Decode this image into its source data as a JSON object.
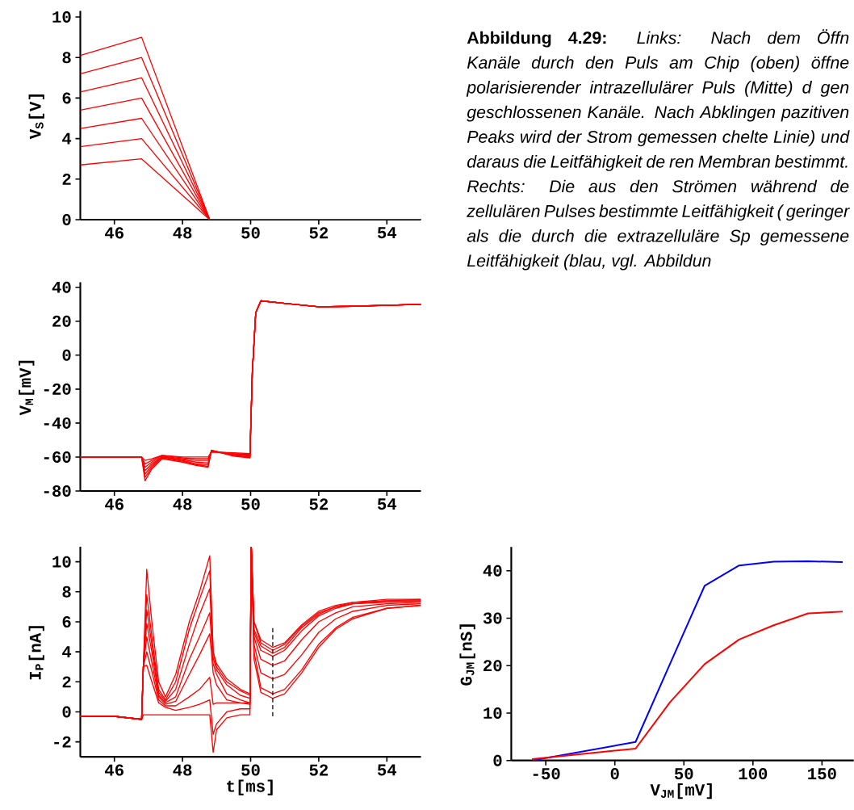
{
  "chart_data": [
    {
      "type": "line",
      "ylabel": "V$_{S}$[V]",
      "xlim": [
        45,
        55
      ],
      "ylim": [
        0,
        10.3
      ],
      "xticks": [
        46,
        48,
        50,
        52,
        54
      ],
      "yticks": [
        0,
        2,
        4,
        6,
        8,
        10
      ],
      "series": [
        {
          "color": "#ff0000",
          "x": [
            45,
            46.8,
            48.8,
            55
          ],
          "values": [
            8.1,
            9,
            0,
            0
          ]
        },
        {
          "color": "#ff0000",
          "x": [
            45,
            46.8,
            48.8,
            55
          ],
          "values": [
            7.2,
            8,
            0,
            0
          ]
        },
        {
          "color": "#ff0000",
          "x": [
            45,
            46.8,
            48.8,
            55
          ],
          "values": [
            6.3,
            7,
            0,
            0
          ]
        },
        {
          "color": "#ff0000",
          "x": [
            45,
            46.8,
            48.8,
            55
          ],
          "values": [
            5.4,
            6,
            0,
            0
          ]
        },
        {
          "color": "#ff0000",
          "x": [
            45,
            46.8,
            48.8,
            55
          ],
          "values": [
            4.5,
            5,
            0,
            0
          ]
        },
        {
          "color": "#ff0000",
          "x": [
            45,
            46.8,
            48.8,
            55
          ],
          "values": [
            3.6,
            4,
            0,
            0
          ]
        },
        {
          "color": "#ff0000",
          "x": [
            45,
            46.8,
            48.8,
            55
          ],
          "values": [
            2.7,
            3,
            0,
            0
          ]
        }
      ]
    },
    {
      "type": "other",
      "annotations": [
        "Abbildung 4.29:",
        "Links: Nach dem Öffn Kanäle durch den Puls am Chip (oben) öffne polarisierender intrazellulärer Puls (Mitte) d gen geschlossenen Kanäle. Nach Abklingen pazitiven Peaks wird der Strom gemessen chelte Linie) und daraus die Leitfähigkeit de ren Membran bestimmt.",
        "Rechts: Die aus den Strömen während de zellulären Pulses bestimmte Leitfähigkeit ( geringer als die durch die extrazelluläre Sp gemessene Leitfähigkeit (blau, vgl. Abbildun"
      ]
    },
    {
      "type": "line",
      "ylabel": "V$_{M}$[mV]",
      "xlim": [
        45,
        55
      ],
      "ylim": [
        -80,
        43
      ],
      "xticks": [
        46,
        48,
        50,
        52,
        54
      ],
      "yticks": [
        -80,
        -60,
        -40,
        -20,
        0,
        20,
        40
      ],
      "series": [
        {
          "color": "#ff0000",
          "x": [
            45,
            46.8,
            46.9,
            47.1,
            47.4,
            48.0,
            48.4,
            48.75,
            48.85,
            49.5,
            49.98,
            50.05,
            50.15,
            50.3,
            51.0,
            52.0,
            53.0,
            55.0
          ],
          "values": [
            -60,
            -60,
            -62,
            -61,
            -59,
            -60,
            -60,
            -60,
            -57,
            -57.5,
            -58,
            -10,
            25,
            32,
            30.5,
            28.5,
            28.8,
            30
          ]
        },
        {
          "color": "#ff0000",
          "x": [
            45,
            46.8,
            46.9,
            47.1,
            47.4,
            48.0,
            48.4,
            48.75,
            48.85,
            49.5,
            49.98,
            50.05,
            50.15,
            50.3,
            51.0,
            52.0,
            53.0,
            55.0
          ],
          "values": [
            -60,
            -60,
            -64,
            -62,
            -59,
            -60.5,
            -61,
            -61,
            -57,
            -58,
            -58.5,
            -10,
            25,
            32,
            30.5,
            28.5,
            28.8,
            30
          ]
        },
        {
          "color": "#ff0000",
          "x": [
            45,
            46.8,
            46.9,
            47.1,
            47.4,
            48.0,
            48.4,
            48.75,
            48.85,
            49.5,
            49.98,
            50.05,
            50.15,
            50.3,
            51.0,
            52.0,
            53.0,
            55.0
          ],
          "values": [
            -60,
            -60,
            -66,
            -63,
            -59.5,
            -61,
            -62,
            -62,
            -56.5,
            -58,
            -59,
            -10,
            25,
            32,
            30.5,
            28.5,
            28.8,
            30
          ]
        },
        {
          "color": "#ff0000",
          "x": [
            45,
            46.8,
            46.9,
            47.1,
            47.4,
            48.0,
            48.4,
            48.75,
            48.85,
            49.5,
            49.98,
            50.05,
            50.15,
            50.3,
            51.0,
            52.0,
            53.0,
            55.0
          ],
          "values": [
            -60,
            -60,
            -68,
            -64,
            -60,
            -61.5,
            -63,
            -63.5,
            -56.5,
            -58.5,
            -59.5,
            -10,
            25,
            32,
            30.5,
            28.5,
            28.8,
            30
          ]
        },
        {
          "color": "#ff0000",
          "x": [
            45,
            46.8,
            46.9,
            47.1,
            47.4,
            48.0,
            48.4,
            48.75,
            48.85,
            49.5,
            49.98,
            50.05,
            50.15,
            50.3,
            51.0,
            52.0,
            53.0,
            55.0
          ],
          "values": [
            -60,
            -60,
            -70,
            -65,
            -60,
            -62,
            -64,
            -64.5,
            -56,
            -59,
            -60,
            -10,
            25,
            32,
            30.5,
            28.5,
            28.8,
            30
          ]
        },
        {
          "color": "#ff0000",
          "x": [
            45,
            46.8,
            46.9,
            47.1,
            47.4,
            48.0,
            48.4,
            48.75,
            48.85,
            49.5,
            49.98,
            50.05,
            50.15,
            50.3,
            51.0,
            52.0,
            53.0,
            55.0
          ],
          "values": [
            -60,
            -60,
            -72,
            -66,
            -60.5,
            -62.5,
            -64.5,
            -65.5,
            -56,
            -59,
            -60,
            -10,
            25,
            32,
            30.5,
            28.5,
            28.8,
            30
          ]
        },
        {
          "color": "#ff0000",
          "x": [
            45,
            46.8,
            46.9,
            47.1,
            47.4,
            48.0,
            48.4,
            48.75,
            48.85,
            49.5,
            49.98,
            50.05,
            50.15,
            50.3,
            51.0,
            52.0,
            53.0,
            55.0
          ],
          "values": [
            -60,
            -60,
            -74,
            -67,
            -61,
            -63,
            -65,
            -66,
            -56,
            -59.5,
            -60.5,
            -10,
            25,
            32,
            30.5,
            28.5,
            28.8,
            30
          ]
        }
      ]
    },
    {
      "type": "line",
      "xlabel": "t[ms]",
      "ylabel": "I$_{P}$[nA]",
      "xlim": [
        45,
        55
      ],
      "ylim": [
        -3,
        11
      ],
      "xticks": [
        46,
        48,
        50,
        52,
        54
      ],
      "yticks": [
        -2,
        0,
        2,
        4,
        6,
        8,
        10
      ],
      "series": [
        {
          "color": "#ff0000",
          "x": [
            45,
            46.0,
            46.8,
            46.85,
            46.95,
            47.1,
            47.3,
            47.5,
            47.8,
            48.2,
            48.5,
            48.8,
            48.9,
            49.0,
            49.3,
            49.7,
            49.98,
            50.02,
            50.1,
            50.3,
            50.65,
            51.0,
            51.5,
            52.0,
            52.5,
            53.0,
            54.0,
            55.0
          ],
          "values": [
            -0.3,
            -0.3,
            -0.5,
            3,
            9.5,
            6,
            2,
            1,
            2.5,
            6,
            8,
            10.4,
            4,
            3.2,
            2.2,
            1.5,
            1.2,
            11,
            6,
            4.8,
            4.3,
            4.6,
            5.8,
            6.7,
            7.1,
            7.3,
            7.5,
            7.5
          ]
        },
        {
          "color": "#ff0000",
          "x": [
            45,
            46.0,
            46.8,
            46.85,
            46.95,
            47.1,
            47.3,
            47.5,
            47.8,
            48.2,
            48.5,
            48.8,
            48.9,
            49.0,
            49.3,
            49.7,
            49.98,
            50.02,
            50.1,
            50.3,
            50.65,
            51.0,
            51.5,
            52.0,
            52.5,
            53.0,
            54.0,
            55.0
          ],
          "values": [
            -0.3,
            -0.3,
            -0.5,
            3,
            7.8,
            5,
            1.5,
            0.8,
            2,
            5.5,
            7.5,
            9.4,
            4,
            3,
            2,
            1.4,
            1.1,
            11,
            6,
            4.6,
            4.1,
            4.5,
            5.7,
            6.6,
            7.0,
            7.3,
            7.4,
            7.5
          ]
        },
        {
          "color": "#ff0000",
          "x": [
            45,
            46.0,
            46.8,
            46.85,
            46.95,
            47.1,
            47.3,
            47.5,
            47.8,
            48.2,
            48.5,
            48.8,
            48.9,
            49.0,
            49.3,
            49.7,
            49.98,
            50.02,
            50.1,
            50.3,
            50.65,
            51.0,
            51.5,
            52.0,
            52.5,
            53.0,
            54.0,
            55.0
          ],
          "values": [
            -0.3,
            -0.3,
            -0.5,
            3,
            6.8,
            4.5,
            1.3,
            0.7,
            1.5,
            4.5,
            6.5,
            8.2,
            3.6,
            2.8,
            1.8,
            1.1,
            0.9,
            11,
            5.5,
            4.4,
            3.9,
            4.3,
            5.6,
            6.5,
            7.0,
            7.2,
            7.4,
            7.4
          ]
        },
        {
          "color": "#ff0000",
          "x": [
            45,
            46.0,
            46.8,
            46.85,
            46.95,
            47.1,
            47.3,
            47.5,
            47.8,
            48.2,
            48.5,
            48.8,
            48.9,
            49.0,
            49.3,
            49.7,
            49.98,
            50.02,
            50.1,
            50.3,
            50.65,
            51.0,
            51.5,
            52.0,
            52.5,
            53.0,
            54.0,
            55.0
          ],
          "values": [
            -0.3,
            -0.3,
            -0.5,
            3,
            5.9,
            4,
            1.1,
            0.6,
            1,
            3.5,
            5,
            6.6,
            3.2,
            2.5,
            1.2,
            0.8,
            0.6,
            11,
            5.3,
            4.1,
            3.7,
            4.1,
            5.4,
            6.4,
            6.9,
            7.2,
            7.3,
            7.4
          ]
        },
        {
          "color": "#ff0000",
          "x": [
            45,
            46.0,
            46.8,
            46.85,
            46.95,
            47.1,
            47.3,
            47.5,
            47.8,
            48.2,
            48.5,
            48.8,
            48.9,
            49.0,
            49.3,
            49.7,
            49.98,
            50.02,
            50.1,
            50.3,
            50.65,
            51.0,
            51.5,
            52.0,
            52.5,
            53.0,
            54.0,
            55.0
          ],
          "values": [
            -0.3,
            -0.3,
            -0.5,
            3,
            5.0,
            3.3,
            1.0,
            0.5,
            0.7,
            2.5,
            3.8,
            5.2,
            2.6,
            1.8,
            0.8,
            0.6,
            0.5,
            11,
            5,
            3.5,
            3.1,
            3.4,
            4.8,
            6.0,
            6.6,
            7.0,
            7.2,
            7.3
          ]
        },
        {
          "color": "#ff0000",
          "x": [
            45,
            46.0,
            46.8,
            46.85,
            46.95,
            47.1,
            47.3,
            47.5,
            47.8,
            48.2,
            48.5,
            48.8,
            48.9,
            49.0,
            49.3,
            49.7,
            49.98,
            50.02,
            50.1,
            50.3,
            50.65,
            51.0,
            51.5,
            52.0,
            52.5,
            53.0,
            54.0,
            55.0
          ],
          "values": [
            -0.3,
            -0.3,
            -0.5,
            3,
            4.0,
            2.7,
            0.8,
            0.4,
            0.4,
            1,
            1.5,
            2.3,
            0.5,
            0.6,
            0.6,
            0.6,
            0.6,
            11,
            4.5,
            2.6,
            2.2,
            2.5,
            3.8,
            5.3,
            6.2,
            6.7,
            7.1,
            7.2
          ]
        },
        {
          "color": "#ff0000",
          "x": [
            45,
            46.0,
            46.8,
            46.85,
            46.95,
            47.1,
            47.3,
            47.5,
            47.8,
            48.2,
            48.5,
            48.8,
            48.9,
            49.0,
            49.3,
            49.7,
            49.98,
            50.02,
            50.1,
            50.3,
            50.65,
            51.0,
            51.5,
            52.0,
            52.5,
            53.0,
            54.0,
            55.0
          ],
          "values": [
            -0.3,
            -0.3,
            -0.5,
            3,
            3.1,
            2,
            0.6,
            0.3,
            0.1,
            0.3,
            0.5,
            0.8,
            -1.5,
            -0.8,
            0,
            0.2,
            0.2,
            11,
            4,
            1.6,
            1.2,
            1.5,
            2.8,
            4.5,
            5.6,
            6.3,
            6.9,
            7.1
          ]
        },
        {
          "color": "#ff0000",
          "x": [
            45,
            46.0,
            46.8,
            46.85,
            46.95,
            47.1,
            47.3,
            47.5,
            47.8,
            48.2,
            48.5,
            48.8,
            48.9,
            49.0,
            49.3,
            49.7,
            49.98,
            50.02,
            50.1,
            50.3,
            50.65,
            51.0,
            51.5,
            52.0,
            52.5,
            53.0,
            54.0,
            55.0
          ],
          "values": [
            -0.3,
            -0.3,
            -0.5,
            -0.2,
            -0.2,
            -0.2,
            -0.2,
            -0.2,
            -0.2,
            -0.2,
            -0.2,
            -0.2,
            -2.7,
            -1.2,
            -0.4,
            -0.2,
            -0.2,
            11,
            3.5,
            1.3,
            0.9,
            1.2,
            2.6,
            4.3,
            5.5,
            6.2,
            6.9,
            7.1
          ]
        },
        {
          "color": "#000000",
          "line_style": "dashed",
          "x": [
            50.65,
            50.65
          ],
          "values": [
            -0.3,
            5.6
          ]
        }
      ]
    },
    {
      "type": "line",
      "xlabel": "V$_{JM}$[mV]",
      "ylabel": "G$_{JM}$[nS]",
      "xlim": [
        -75,
        173
      ],
      "ylim": [
        0,
        45
      ],
      "xticks": [
        -50,
        0,
        50,
        100,
        150
      ],
      "yticks": [
        0,
        10,
        20,
        30,
        40
      ],
      "series": [
        {
          "color": "#0000ff",
          "x": [
            -60,
            15,
            40,
            65,
            90,
            115,
            140,
            165
          ],
          "values": [
            0,
            3.9,
            20.4,
            36.8,
            41.1,
            41.9,
            42.0,
            41.8
          ]
        },
        {
          "color": "#ff0000",
          "x": [
            -60,
            15,
            40,
            65,
            90,
            115,
            140,
            165
          ],
          "values": [
            0.3,
            2.5,
            12.3,
            20.3,
            25.5,
            28.5,
            31.0,
            31.4
          ]
        }
      ]
    }
  ]
}
